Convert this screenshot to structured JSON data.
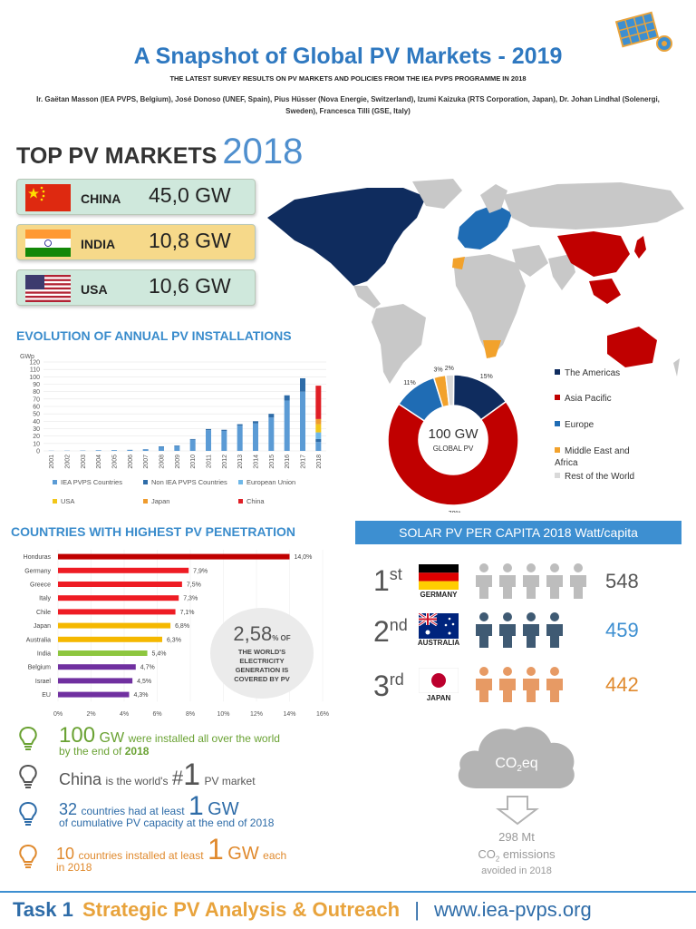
{
  "header": {
    "title": "A Snapshot of Global PV Markets - 2019",
    "subtitle": "THE LATEST SURVEY RESULTS ON PV MARKETS AND POLICIES FROM THE IEA PVPS PROGRAMME IN 2018",
    "authors": "Ir. Gaëtan Masson (IEA PVPS, Belgium), José Donoso (UNEF, Spain), Pius Hüsser (Nova Energie, Switzerland), Izumi Kaizuka (RTS Corporation, Japan), Dr. Johan Lindhal (Solenergi, Sweden), Francesca Tilli (GSE, Italy)"
  },
  "top_markets": {
    "heading": "TOP PV MARKETS",
    "year": "2018",
    "items": [
      {
        "country": "CHINA",
        "value": "45,0 GW",
        "color": "#cfe8dc"
      },
      {
        "country": "INDIA",
        "value": "10,8 GW",
        "color": "#f6d98a"
      },
      {
        "country": "USA",
        "value": "10,6 GW",
        "color": "#cfe8dc"
      }
    ]
  },
  "evolution": {
    "heading": "EVOLUTION OF ANNUAL PV INSTALLATIONS"
  },
  "penetration": {
    "heading": "COUNTRIES WITH HIGHEST PV PENETRATION",
    "circle_value": "2,58",
    "circle_unit": "% OF",
    "circle_text": "THE WORLD'S ELECTRICITY GENERATION IS COVERED BY PV"
  },
  "per_capita": {
    "heading": "SOLAR PV PER CAPITA 2018 Watt/capita",
    "ranks": [
      {
        "rank": "1",
        "suffix": "st",
        "country": "GERMANY",
        "value": "548",
        "color": "#bdbdbd",
        "value_color": "#555555",
        "people": 5
      },
      {
        "rank": "2",
        "suffix": "nd",
        "country": "AUSTRALIA",
        "value": "459",
        "color": "#3f5a73",
        "value_color": "#3d8fd1",
        "people": 4
      },
      {
        "rank": "3",
        "suffix": "rd",
        "country": "JAPAN",
        "value": "442",
        "color": "#e79a64",
        "value_color": "#e08a2e",
        "people": 4
      }
    ]
  },
  "facts": {
    "f1_big": "100",
    "f1_unit": "GW",
    "f1_text": "were installed all over the world",
    "f1_text2": "by the end of",
    "f1_year": "2018",
    "f2_a": "China",
    "f2_b": "is the world's",
    "f2_hash": "#",
    "f2_big": "1",
    "f2_c": "PV market",
    "f3_big": "32",
    "f3_a": "countries had at least",
    "f3_num": "1",
    "f3_unit": "GW",
    "f3_b": "of cumulative PV capacity at the end of 2018",
    "f4_big": "10",
    "f4_a": "countries installed at least",
    "f4_num": "1",
    "f4_unit": "GW",
    "f4_b": "each",
    "f4_c": "in 2018"
  },
  "co2": {
    "cloud_label": "CO",
    "cloud_sub": "2",
    "cloud_suffix": "eq",
    "mt": "298 Mt",
    "emis_a": "CO",
    "emis_sub": "2",
    "emis_b": " emissions",
    "avoided": "avoided in 2018"
  },
  "footer": {
    "task": "Task 1",
    "name": "Strategic PV Analysis & Outreach",
    "sep": "|",
    "url": "www.iea-pvps.org"
  },
  "chart_data": [
    {
      "type": "bar",
      "title": "",
      "ylabel": "GWp",
      "ylim": [
        0,
        120
      ],
      "yticks": [
        0,
        10,
        20,
        30,
        40,
        50,
        60,
        70,
        80,
        90,
        100,
        110,
        120
      ],
      "categories": [
        "2001",
        "2002",
        "2003",
        "2004",
        "2005",
        "2006",
        "2007",
        "2008",
        "2009",
        "2010",
        "2011",
        "2012",
        "2013",
        "2014",
        "2015",
        "2016",
        "2017",
        "2018"
      ],
      "stacked": true,
      "series": [
        {
          "name": "IEA PVPS Countries",
          "color": "#5b9bd5",
          "values": [
            0.2,
            0.3,
            0.4,
            0.8,
            1.0,
            1.2,
            2.0,
            5.5,
            6.5,
            15,
            28,
            27,
            34,
            37,
            45,
            68,
            80,
            12
          ]
        },
        {
          "name": "Non IEA PVPS Countries",
          "color": "#2e6ca8",
          "values": [
            0.05,
            0.05,
            0.1,
            0.1,
            0.1,
            0.2,
            0.3,
            0.6,
            0.8,
            1,
            1.5,
            1.5,
            2,
            3,
            5,
            7,
            18,
            4
          ]
        },
        {
          "name": "European Union",
          "color": "#6fb8e8",
          "values": [
            0,
            0,
            0,
            0,
            0,
            0,
            0,
            0,
            0,
            0,
            0,
            0,
            0,
            0,
            0,
            0,
            0,
            9
          ]
        },
        {
          "name": "USA",
          "color": "#f2c618",
          "values": [
            0,
            0,
            0,
            0,
            0,
            0,
            0,
            0,
            0,
            0,
            0,
            0,
            0,
            0,
            0,
            0,
            0,
            11
          ]
        },
        {
          "name": "Japan",
          "color": "#ef9b2d",
          "values": [
            0,
            0,
            0,
            0,
            0,
            0,
            0,
            0,
            0,
            0,
            0,
            0,
            0,
            0,
            0,
            0,
            0,
            7
          ]
        },
        {
          "name": "China",
          "color": "#e01f26",
          "values": [
            0,
            0,
            0,
            0,
            0,
            0,
            0,
            0,
            0,
            0,
            0,
            0,
            0,
            0,
            0,
            0,
            0,
            45
          ]
        }
      ]
    },
    {
      "type": "pie",
      "title": "",
      "center_value": "100 GW",
      "center_label": "GLOBAL PV",
      "slices": [
        {
          "name": "The Americas",
          "value": 15,
          "label": "15%",
          "color": "#0f2c5e"
        },
        {
          "name": "Asia Pacific",
          "value": 70,
          "label": "70%",
          "color": "#c00000"
        },
        {
          "name": "Europe",
          "value": 11,
          "label": "11%",
          "color": "#1f6cb4"
        },
        {
          "name": "Middle East and Africa",
          "value": 3,
          "label": "3%",
          "color": "#f2a22c"
        },
        {
          "name": "Rest of the World",
          "value": 2,
          "label": "2%",
          "color": "#d9d9d9"
        }
      ]
    },
    {
      "type": "bar",
      "orientation": "horizontal",
      "title": "",
      "xlim": [
        0,
        16
      ],
      "xticks": [
        "0%",
        "2%",
        "4%",
        "6%",
        "8%",
        "10%",
        "12%",
        "14%",
        "16%"
      ],
      "categories": [
        "Honduras",
        "Germany",
        "Greece",
        "Italy",
        "Chile",
        "Japan",
        "Australia",
        "India",
        "Belgium",
        "Israel",
        "EU"
      ],
      "values": [
        14.0,
        7.9,
        7.5,
        7.3,
        7.1,
        6.8,
        6.3,
        5.4,
        4.7,
        4.5,
        4.3
      ],
      "labels": [
        "14,0%",
        "7,9%",
        "7,5%",
        "7,3%",
        "7,1%",
        "6,8%",
        "6,3%",
        "5,4%",
        "4,7%",
        "4,5%",
        "4,3%"
      ],
      "colors": [
        "#c00000",
        "#ee1c24",
        "#ee1c24",
        "#ee1c24",
        "#ee1c24",
        "#f5b800",
        "#f5b800",
        "#8dc63f",
        "#7030a0",
        "#7030a0",
        "#7030a0"
      ]
    }
  ]
}
